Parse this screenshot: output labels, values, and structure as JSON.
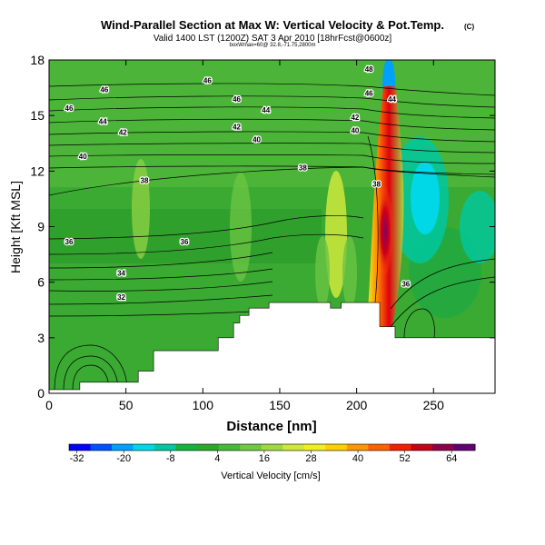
{
  "header": {
    "title": "Wind-Parallel Section at Max W: Vertical Velocity & Pot.Temp.",
    "corner_mark": "(C)",
    "subtitle": "Valid 1400 LST (1200Z) SAT 3 Apr 2010 [18hrFcst@0600z]",
    "subtitle2": "boxWmax=60@ 32.8,-71.75,2800m"
  },
  "chart_data": {
    "type": "heatmap",
    "title": "Wind-Parallel Section at Max W: Vertical Velocity & Pot.Temp.",
    "xlabel": "Distance [nm]",
    "ylabel": "Height [Kft MSL]",
    "xlim": [
      0,
      290
    ],
    "ylim": [
      0,
      18
    ],
    "x_ticks": [
      "0",
      "50",
      "100",
      "150",
      "200",
      "250"
    ],
    "y_ticks": [
      "0",
      "3",
      "6",
      "9",
      "12",
      "15",
      "18"
    ],
    "colorbar": {
      "label": "Vertical Velocity [cm/s]",
      "range": [
        -34,
        70
      ],
      "tick_labels": [
        "-32",
        "-20",
        "-8",
        "4",
        "16",
        "28",
        "40",
        "52",
        "64"
      ],
      "colors": [
        "#0000ff",
        "#0050ff",
        "#00a0ff",
        "#00d8e8",
        "#00c8a0",
        "#14b43c",
        "#2aa82a",
        "#48b83a",
        "#70c844",
        "#a0d840",
        "#d0e838",
        "#f0f020",
        "#ffd000",
        "#ff9800",
        "#ff6000",
        "#f02000",
        "#c80018",
        "#8c0048",
        "#600070"
      ]
    },
    "velocity_features": [
      {
        "x": 220,
        "y": 9.0,
        "value": 60,
        "label": "updraft core"
      },
      {
        "x": 236,
        "y": 10.5,
        "value": -10,
        "label": "downdraft"
      }
    ],
    "theta_contour_labels": [
      {
        "text": "46",
        "x": 13,
        "y": 15.4
      },
      {
        "text": "46",
        "x": 36,
        "y": 16.4
      },
      {
        "text": "46",
        "x": 103,
        "y": 16.9
      },
      {
        "text": "46",
        "x": 122,
        "y": 15.9
      },
      {
        "text": "44",
        "x": 35,
        "y": 14.7
      },
      {
        "text": "44",
        "x": 141,
        "y": 15.3
      },
      {
        "text": "42",
        "x": 48,
        "y": 14.1
      },
      {
        "text": "42",
        "x": 122,
        "y": 14.4
      },
      {
        "text": "42",
        "x": 199,
        "y": 14.9
      },
      {
        "text": "40",
        "x": 22,
        "y": 12.8
      },
      {
        "text": "40",
        "x": 135,
        "y": 13.7
      },
      {
        "text": "40",
        "x": 199,
        "y": 14.2
      },
      {
        "text": "38",
        "x": 62,
        "y": 11.5
      },
      {
        "text": "38",
        "x": 165,
        "y": 12.2
      },
      {
        "text": "38",
        "x": 213,
        "y": 11.3
      },
      {
        "text": "36",
        "x": 13,
        "y": 8.2
      },
      {
        "text": "36",
        "x": 88,
        "y": 8.2
      },
      {
        "text": "36",
        "x": 232,
        "y": 5.9
      },
      {
        "text": "34",
        "x": 47,
        "y": 6.5
      },
      {
        "text": "32",
        "x": 47,
        "y": 5.2
      },
      {
        "text": "48",
        "x": 208,
        "y": 17.5
      },
      {
        "text": "46",
        "x": 208,
        "y": 16.2
      },
      {
        "text": "44",
        "x": 223,
        "y": 15.9
      }
    ],
    "terrain": {
      "x": [
        0,
        20,
        20,
        58,
        58,
        68,
        68,
        110,
        110,
        120,
        120,
        124,
        124,
        130,
        130,
        143,
        143,
        183,
        183,
        190,
        190,
        215,
        215,
        225,
        225,
        290
      ],
      "height": [
        0.2,
        0.2,
        0.6,
        0.6,
        1.2,
        1.2,
        2.3,
        2.3,
        3.0,
        3.0,
        3.8,
        3.8,
        4.2,
        4.2,
        4.6,
        4.6,
        4.9,
        4.9,
        4.6,
        4.6,
        4.9,
        4.9,
        3.6,
        3.6,
        3.0,
        3.0
      ]
    }
  }
}
